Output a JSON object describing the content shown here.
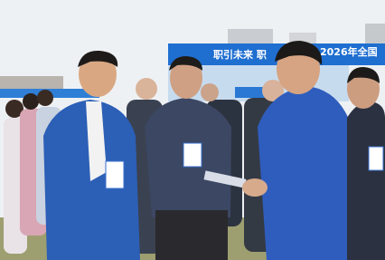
{
  "banner": {
    "left_text": "职引未来 职",
    "right_text": "2026年全国"
  }
}
